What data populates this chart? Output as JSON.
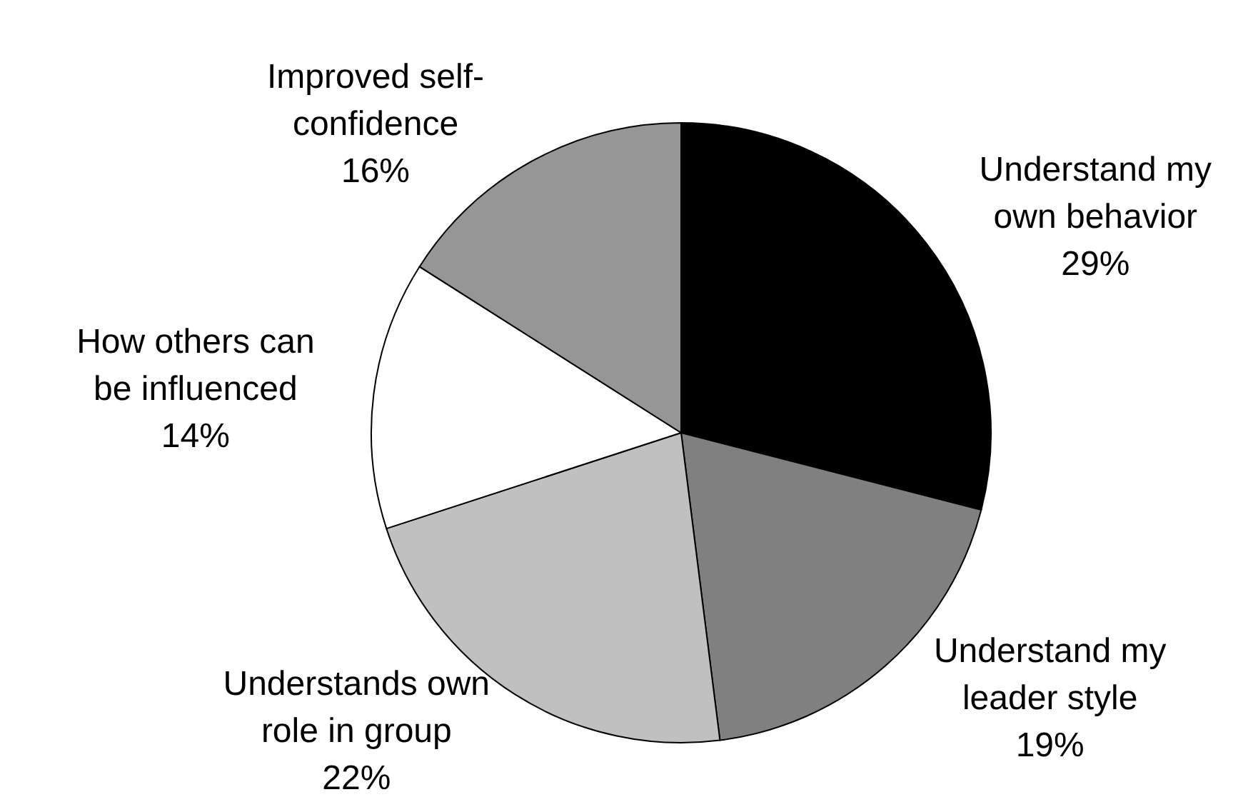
{
  "chart_data": {
    "type": "pie",
    "categories": [
      "Understand my\nown behavior",
      "Understand my\nleader style",
      "Understands own\nrole in group",
      "How others can\nbe influenced",
      "Improved self-\nconfidence"
    ],
    "values": [
      29,
      19,
      22,
      14,
      16
    ],
    "value_labels": [
      "29%",
      "19%",
      "22%",
      "14%",
      "16%"
    ],
    "colors": [
      "#000000",
      "#808080",
      "#c0c0c0",
      "#ffffff",
      "#969696"
    ],
    "legend": false
  }
}
